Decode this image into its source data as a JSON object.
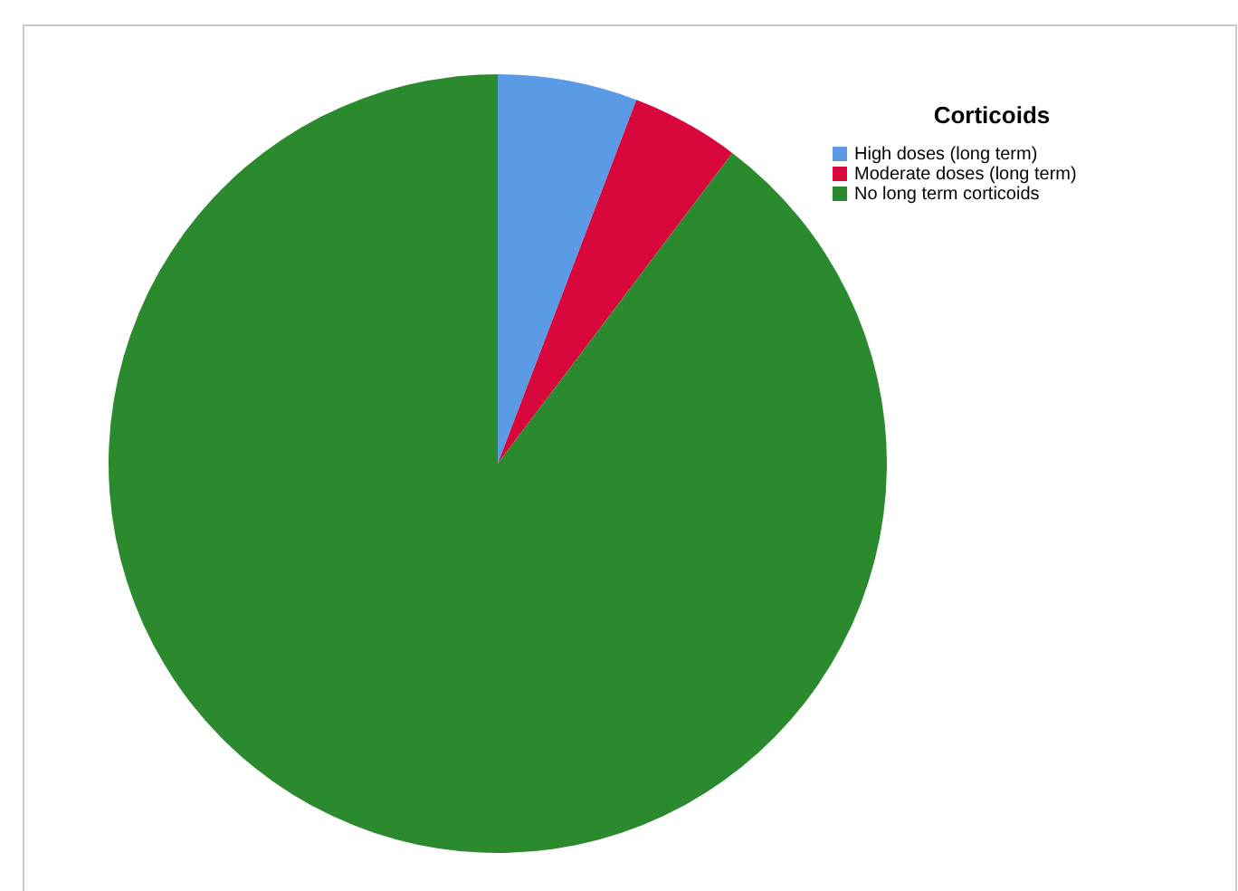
{
  "chart_data": {
    "type": "pie",
    "legend_title": "Corticoids",
    "legend": "top right",
    "categories": [
      "High doses (long term)",
      "Moderate doses (long term)",
      "No long term corticoids"
    ],
    "values": [
      5.8,
      4.5,
      89.7
    ],
    "colors": [
      "#5b9be6",
      "#d7063b",
      "#2a8a2d"
    ]
  }
}
